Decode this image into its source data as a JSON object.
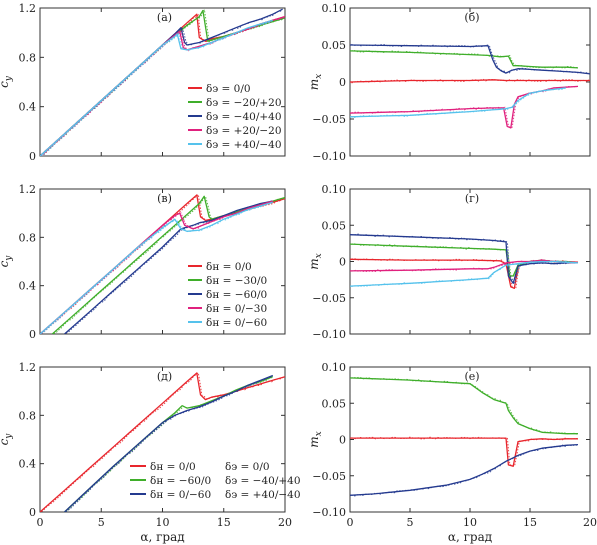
{
  "colors": {
    "red": "#e8262d",
    "green": "#3fae2a",
    "blue": "#243a8f",
    "magenta": "#e0217e",
    "cyan": "#55c2ec"
  },
  "chart_data": [
    {
      "type": "line",
      "panel_label": "(а)",
      "ylabel": "c_y",
      "xlabel": "",
      "xlim": [
        0,
        20
      ],
      "ylim": [
        0,
        1.2
      ],
      "xticks": [
        "0",
        "5",
        "10",
        "15",
        "20"
      ],
      "xticks_shown": false,
      "yticks": [
        "0",
        "0.4",
        "0.8",
        "1.2"
      ],
      "legend_position": "bottom-right",
      "legend_columns": 1,
      "series": [
        {
          "name": "δэ = 0/0",
          "color": "red",
          "x": [
            0,
            2,
            4,
            6,
            8,
            10,
            11,
            12,
            12.8,
            13.0,
            13.5,
            14,
            15,
            16,
            17,
            18,
            19,
            20
          ],
          "y": [
            0,
            0.18,
            0.36,
            0.54,
            0.72,
            0.9,
            0.99,
            1.08,
            1.15,
            0.96,
            0.93,
            0.95,
            0.97,
            1.0,
            1.03,
            1.07,
            1.1,
            1.13
          ]
        },
        {
          "name": "δэ = −20/+20",
          "color": "green",
          "x": [
            0,
            2,
            4,
            6,
            8,
            10,
            11,
            12,
            13.0,
            13.3,
            13.7,
            14,
            15,
            16,
            17,
            18,
            19,
            20
          ],
          "y": [
            0,
            0.18,
            0.36,
            0.54,
            0.72,
            0.9,
            0.98,
            1.06,
            1.13,
            1.18,
            0.93,
            0.94,
            0.97,
            1.0,
            1.03,
            1.06,
            1.09,
            1.12
          ]
        },
        {
          "name": "δэ = −40/+40",
          "color": "blue",
          "x": [
            0,
            2,
            4,
            6,
            8,
            10,
            11,
            11.5,
            11.8,
            12,
            13,
            14,
            15,
            16,
            17,
            18,
            19,
            19.8
          ],
          "y": [
            0,
            0.18,
            0.36,
            0.54,
            0.72,
            0.9,
            0.99,
            1.04,
            0.92,
            0.9,
            0.92,
            0.96,
            1.0,
            1.04,
            1.08,
            1.11,
            1.15,
            1.19
          ]
        },
        {
          "name": "δэ = +20/−20",
          "color": "magenta",
          "x": [
            0,
            2,
            4,
            6,
            8,
            10,
            11,
            11.4,
            11.7,
            12,
            13,
            14,
            15,
            16,
            17,
            18,
            19,
            20
          ],
          "y": [
            0,
            0.18,
            0.36,
            0.54,
            0.72,
            0.9,
            0.98,
            1.01,
            0.88,
            0.86,
            0.89,
            0.92,
            0.96,
            1.0,
            1.03,
            1.07,
            1.1,
            1.13
          ]
        },
        {
          "name": "δэ = +40/−40",
          "color": "cyan",
          "x": [
            0,
            2,
            4,
            6,
            8,
            10,
            11,
            11.2,
            11.5,
            12,
            13,
            14,
            15,
            16,
            17,
            18,
            19
          ],
          "y": [
            0,
            0.18,
            0.36,
            0.54,
            0.72,
            0.9,
            0.97,
            0.99,
            0.87,
            0.86,
            0.88,
            0.92,
            0.96,
            1.0,
            1.04,
            1.07,
            1.1
          ]
        }
      ]
    },
    {
      "type": "line",
      "panel_label": "(б)",
      "ylabel": "m_x",
      "xlabel": "",
      "xlim": [
        0,
        20
      ],
      "ylim": [
        -0.1,
        0.1
      ],
      "xticks": [
        "0",
        "5",
        "10",
        "15",
        "20"
      ],
      "xticks_shown": false,
      "yticks": [
        "−0.10",
        "−0.05",
        "0",
        "0.05",
        "0.10"
      ],
      "series": [
        {
          "color": "red",
          "x": [
            0,
            5,
            10,
            12,
            13,
            14,
            15,
            16,
            17,
            18,
            19,
            20
          ],
          "y": [
            0.0,
            0.002,
            0.002,
            0.003,
            0.002,
            0.002,
            0.002,
            0.002,
            0.002,
            0.002,
            0.002,
            0.002
          ]
        },
        {
          "color": "green",
          "x": [
            0,
            5,
            10,
            11.5,
            12.5,
            13.2,
            13.6,
            14,
            15,
            16,
            17,
            18,
            19
          ],
          "y": [
            0.042,
            0.04,
            0.037,
            0.036,
            0.034,
            0.035,
            0.022,
            0.022,
            0.021,
            0.02,
            0.02,
            0.02,
            0.019
          ]
        },
        {
          "color": "blue",
          "x": [
            0,
            5,
            10,
            11.5,
            11.9,
            12.2,
            12.6,
            13,
            13.5,
            14,
            15,
            16,
            17,
            18,
            19,
            20
          ],
          "y": [
            0.05,
            0.049,
            0.048,
            0.049,
            0.03,
            0.02,
            0.015,
            0.012,
            0.016,
            0.018,
            0.017,
            0.016,
            0.015,
            0.014,
            0.013,
            0.011
          ]
        },
        {
          "color": "magenta",
          "x": [
            0,
            5,
            10,
            12,
            12.8,
            13.1,
            13.4,
            13.7,
            14,
            15,
            16,
            17,
            18,
            19
          ],
          "y": [
            -0.042,
            -0.04,
            -0.036,
            -0.035,
            -0.035,
            -0.06,
            -0.062,
            -0.03,
            -0.02,
            -0.015,
            -0.012,
            -0.008,
            -0.007,
            -0.006
          ]
        },
        {
          "color": "cyan",
          "x": [
            0,
            5,
            10,
            11.5,
            12.5,
            13,
            13.5,
            14,
            15,
            16,
            17,
            18
          ],
          "y": [
            -0.047,
            -0.045,
            -0.04,
            -0.038,
            -0.037,
            -0.036,
            -0.034,
            -0.025,
            -0.015,
            -0.012,
            -0.01,
            -0.008
          ]
        }
      ]
    },
    {
      "type": "line",
      "panel_label": "(в)",
      "ylabel": "c_y",
      "xlabel": "",
      "xlim": [
        0,
        20
      ],
      "ylim": [
        0,
        1.2
      ],
      "xticks": [
        "0",
        "5",
        "10",
        "15",
        "20"
      ],
      "xticks_shown": false,
      "yticks": [
        "0",
        "0.4",
        "0.8",
        "1.2"
      ],
      "legend_position": "bottom-right",
      "legend_columns": 1,
      "series": [
        {
          "name": "δн = 0/0",
          "color": "red",
          "x": [
            0,
            2,
            4,
            6,
            8,
            10,
            12,
            12.8,
            13.1,
            13.5,
            14,
            15,
            16,
            17,
            18,
            19,
            20
          ],
          "y": [
            0,
            0.18,
            0.36,
            0.54,
            0.72,
            0.9,
            1.08,
            1.15,
            0.97,
            0.94,
            0.95,
            0.98,
            1.0,
            1.03,
            1.06,
            1.09,
            1.12
          ]
        },
        {
          "name": "δн = −30/0",
          "color": "green",
          "x": [
            1,
            3,
            5,
            7,
            9,
            11,
            13,
            13.4,
            13.8,
            14,
            15,
            16,
            17,
            18,
            19,
            20
          ],
          "y": [
            0,
            0.18,
            0.36,
            0.54,
            0.72,
            0.9,
            1.08,
            1.14,
            0.97,
            0.95,
            0.98,
            1.01,
            1.04,
            1.07,
            1.1,
            1.13
          ]
        },
        {
          "name": "δн = −60/0",
          "color": "blue",
          "x": [
            2,
            4,
            6,
            8,
            10,
            11.5,
            12.5,
            13,
            14,
            15,
            16,
            17,
            18,
            19
          ],
          "y": [
            0,
            0.18,
            0.36,
            0.54,
            0.72,
            0.87,
            0.9,
            0.92,
            0.94,
            0.98,
            1.02,
            1.05,
            1.08,
            1.1
          ]
        },
        {
          "name": "δн = 0/−30",
          "color": "magenta",
          "x": [
            0,
            2,
            4,
            6,
            8,
            10,
            11,
            11.4,
            11.8,
            12.5,
            13,
            14,
            15,
            16,
            17,
            18,
            19
          ],
          "y": [
            0,
            0.18,
            0.36,
            0.54,
            0.72,
            0.9,
            0.98,
            1.0,
            0.9,
            0.87,
            0.89,
            0.93,
            0.97,
            1.0,
            1.04,
            1.07,
            1.1
          ]
        },
        {
          "name": "δн = 0/−60",
          "color": "cyan",
          "x": [
            0,
            2,
            4,
            6,
            8,
            10,
            11,
            11.5,
            12,
            13,
            14,
            15,
            16,
            17,
            18,
            19
          ],
          "y": [
            0,
            0.18,
            0.36,
            0.54,
            0.72,
            0.88,
            0.95,
            0.87,
            0.85,
            0.86,
            0.9,
            0.95,
            0.99,
            1.03,
            1.06,
            1.09
          ]
        }
      ]
    },
    {
      "type": "line",
      "panel_label": "(г)",
      "ylabel": "m_x",
      "xlabel": "",
      "xlim": [
        0,
        20
      ],
      "ylim": [
        -0.1,
        0.1
      ],
      "xticks": [
        "0",
        "5",
        "10",
        "15",
        "20"
      ],
      "xticks_shown": false,
      "yticks": [
        "−0.10",
        "−0.05",
        "0",
        "0.05",
        "0.10"
      ],
      "series": [
        {
          "color": "red",
          "x": [
            0,
            5,
            10,
            12.5,
            13,
            13.4,
            13.7,
            14,
            15,
            16,
            17,
            18,
            19
          ],
          "y": [
            0.003,
            0.002,
            0.002,
            0.001,
            -0.003,
            -0.035,
            -0.037,
            -0.005,
            0.0,
            0.001,
            0.0,
            0.0,
            -0.001
          ]
        },
        {
          "color": "green",
          "x": [
            0,
            5,
            10,
            12,
            13,
            13.3,
            13.6,
            14,
            15,
            16,
            17,
            18,
            19
          ],
          "y": [
            0.024,
            0.021,
            0.018,
            0.017,
            0.016,
            -0.02,
            -0.02,
            -0.005,
            0.0,
            0.002,
            0.0,
            0.0,
            -0.002
          ]
        },
        {
          "color": "blue",
          "x": [
            0,
            5,
            10,
            12,
            13,
            13.2,
            13.6,
            14,
            15,
            16,
            17,
            18,
            19
          ],
          "y": [
            0.037,
            0.034,
            0.031,
            0.029,
            0.027,
            -0.02,
            -0.03,
            -0.006,
            -0.003,
            -0.002,
            -0.003,
            -0.002,
            -0.002
          ]
        },
        {
          "color": "magenta",
          "x": [
            0,
            5,
            10,
            11.5,
            12,
            13,
            14,
            15,
            16,
            17,
            18,
            19
          ],
          "y": [
            -0.013,
            -0.012,
            -0.01,
            -0.01,
            -0.008,
            -0.002,
            0.0,
            0.0,
            0.002,
            0.0,
            -0.001,
            -0.002
          ]
        },
        {
          "color": "cyan",
          "x": [
            0,
            5,
            10,
            11.5,
            12,
            13,
            14,
            15,
            16,
            17,
            18,
            19
          ],
          "y": [
            -0.034,
            -0.03,
            -0.025,
            -0.023,
            -0.015,
            -0.005,
            -0.003,
            -0.001,
            0.0,
            0.0,
            -0.001,
            -0.002
          ]
        }
      ]
    },
    {
      "type": "line",
      "panel_label": "(д)",
      "ylabel": "c_y",
      "xlabel": "α, град",
      "xlim": [
        0,
        20
      ],
      "ylim": [
        0,
        1.2
      ],
      "xticks": [
        "0",
        "5",
        "10",
        "15",
        "20"
      ],
      "xticks_shown": true,
      "yticks": [
        "0",
        "0.4",
        "0.8",
        "1.2"
      ],
      "legend_position": "bottom-right",
      "legend_columns": 2,
      "series": [
        {
          "name": "δн = 0/0",
          "name2": "δэ = 0/0",
          "color": "red",
          "x": [
            0,
            2,
            4,
            6,
            8,
            10,
            12,
            12.8,
            13.1,
            13.5,
            14,
            15,
            16,
            17,
            18,
            19,
            20
          ],
          "y": [
            0,
            0.18,
            0.36,
            0.54,
            0.72,
            0.9,
            1.08,
            1.15,
            0.97,
            0.93,
            0.95,
            0.97,
            1.0,
            1.03,
            1.06,
            1.09,
            1.12
          ]
        },
        {
          "name": "δн = −60/0",
          "name2": "δэ = −40/+40",
          "color": "green",
          "x": [
            2,
            4,
            6,
            8,
            10,
            11,
            11.6,
            12,
            13,
            14,
            15,
            16,
            17,
            18,
            19
          ],
          "y": [
            0,
            0.19,
            0.38,
            0.56,
            0.74,
            0.82,
            0.88,
            0.86,
            0.88,
            0.92,
            0.96,
            1.01,
            1.05,
            1.08,
            1.12
          ]
        },
        {
          "name": "δн = 0/−60",
          "name2": "δэ = +40/−40",
          "color": "blue",
          "x": [
            2,
            4,
            6,
            8,
            10,
            11,
            12,
            13,
            14,
            15,
            16,
            17,
            18,
            19
          ],
          "y": [
            0,
            0.19,
            0.38,
            0.56,
            0.74,
            0.8,
            0.84,
            0.87,
            0.91,
            0.96,
            1.0,
            1.05,
            1.09,
            1.13
          ]
        }
      ]
    },
    {
      "type": "line",
      "panel_label": "(е)",
      "ylabel": "m_x",
      "xlabel": "α, град",
      "xlim": [
        0,
        20
      ],
      "ylim": [
        -0.1,
        0.1
      ],
      "xticks": [
        "0",
        "5",
        "10",
        "15",
        "20"
      ],
      "xticks_shown": true,
      "yticks": [
        "−0.10",
        "−0.05",
        "0",
        "0.05",
        "0.10"
      ],
      "series": [
        {
          "color": "red",
          "x": [
            0,
            5,
            10,
            12.5,
            13,
            13.2,
            13.6,
            14,
            15,
            16,
            17,
            18,
            19
          ],
          "y": [
            0.002,
            0.002,
            0.002,
            0.002,
            0.002,
            -0.035,
            -0.037,
            -0.003,
            0.0,
            0.001,
            0.0,
            0.001,
            0.001
          ]
        },
        {
          "color": "green",
          "x": [
            0,
            5,
            10,
            11,
            12,
            13,
            13.2,
            13.6,
            14,
            15,
            16,
            17,
            18,
            19
          ],
          "y": [
            0.085,
            0.082,
            0.077,
            0.065,
            0.055,
            0.05,
            0.04,
            0.03,
            0.022,
            0.015,
            0.01,
            0.009,
            0.008,
            0.008
          ]
        },
        {
          "color": "blue",
          "x": [
            0,
            2,
            5,
            8,
            10,
            11,
            12,
            13,
            14,
            15,
            16,
            17,
            18,
            19
          ],
          "y": [
            -0.077,
            -0.075,
            -0.07,
            -0.063,
            -0.055,
            -0.048,
            -0.04,
            -0.03,
            -0.022,
            -0.016,
            -0.012,
            -0.01,
            -0.008,
            -0.007
          ]
        }
      ]
    }
  ]
}
